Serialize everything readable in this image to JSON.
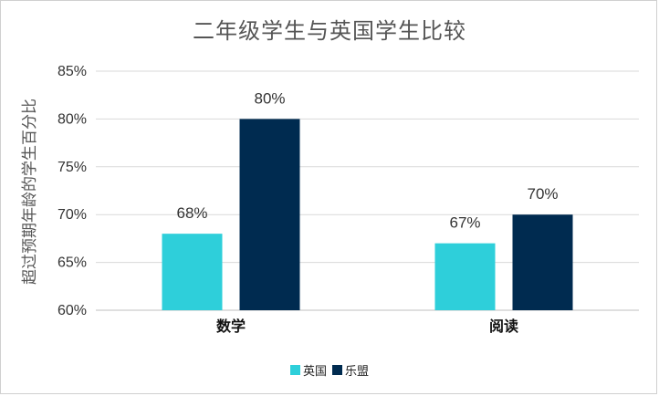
{
  "colors": {
    "uk": "#2ecfda",
    "lemeng": "#002b50",
    "grid": "#d9d9d9",
    "axis": "#bfbfbf"
  },
  "chart_data": {
    "type": "bar",
    "title": "二年级学生与英国学生比较",
    "ylabel": "超过预期年龄的学生百分比",
    "xlabel": "",
    "categories": [
      "数学",
      "阅读"
    ],
    "series": [
      {
        "name": "英国",
        "values": [
          68,
          67
        ],
        "labels": [
          "68%",
          "67%"
        ]
      },
      {
        "name": "乐盟",
        "values": [
          80,
          70
        ],
        "labels": [
          "80%",
          "70%"
        ]
      }
    ],
    "ylim": [
      60,
      85
    ],
    "yticks": [
      60,
      65,
      70,
      75,
      80,
      85
    ],
    "ytick_labels": [
      "60%",
      "65%",
      "70%",
      "75%",
      "80%",
      "85%"
    ],
    "grid": true,
    "legend_position": "bottom"
  }
}
